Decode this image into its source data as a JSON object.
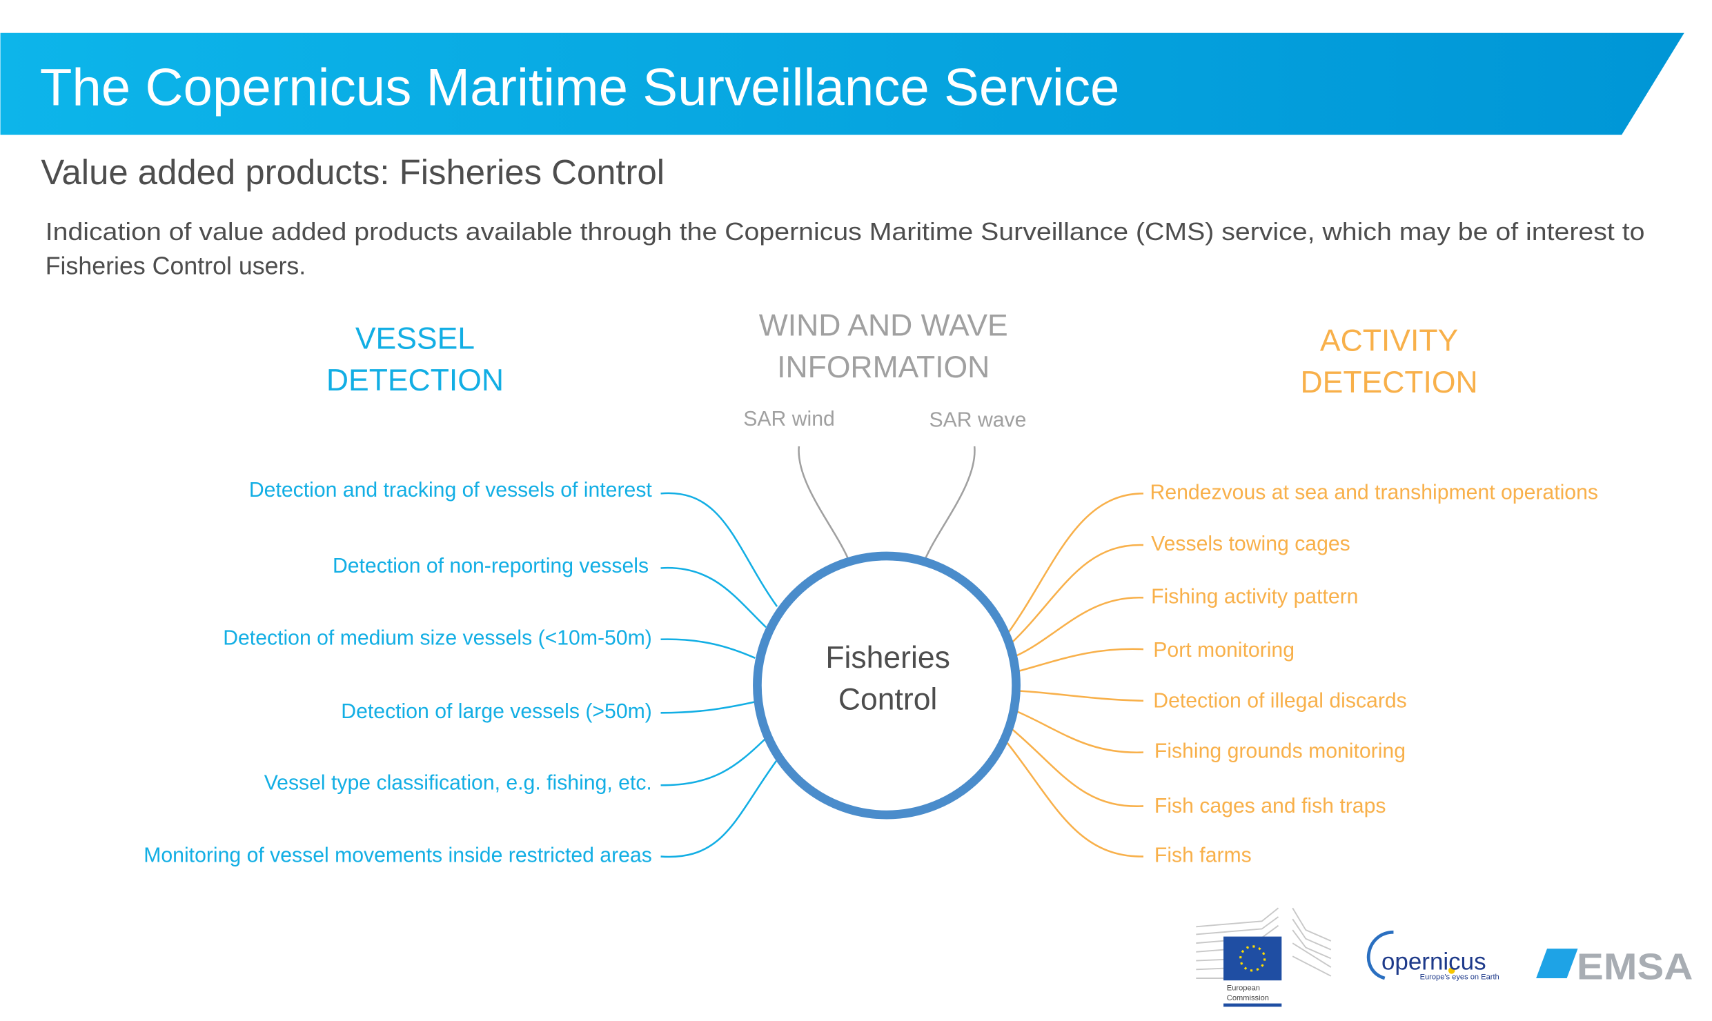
{
  "header": {
    "title": "The Copernicus Maritime Surveillance Service"
  },
  "subtitle": "Value added products: Fisheries Control",
  "description": {
    "line1": "Indication of value added products available through the Copernicus Maritime Surveillance (CMS) service, which may be of interest to",
    "line2": "Fisheries Control users."
  },
  "colors": {
    "banner_start": "#0db5ea",
    "banner_end": "#0096d6",
    "vessel": "#12aee4",
    "wind": "#a0a0a0",
    "activity": "#f8b04a",
    "circle": "#4a8ccb"
  },
  "center": {
    "line1": "Fisheries",
    "line2": "Control"
  },
  "vessel_detection": {
    "heading1": "VESSEL",
    "heading2": "DETECTION",
    "items": [
      "Detection and tracking of vessels of interest",
      "Detection of non-reporting vessels",
      "Detection of medium size vessels (<10m-50m)",
      "Detection of large vessels (>50m)",
      "Vessel type classification, e.g. fishing, etc.",
      "Monitoring of vessel movements inside restricted areas"
    ]
  },
  "wind_wave": {
    "heading1": "WIND AND WAVE",
    "heading2": "INFORMATION",
    "items": [
      "SAR wind",
      "SAR wave"
    ]
  },
  "activity_detection": {
    "heading1": "ACTIVITY",
    "heading2": "DETECTION",
    "items": [
      "Rendezvous at sea and transhipment operations",
      "Vessels towing cages",
      "Fishing activity pattern",
      "Port monitoring",
      "Detection of illegal discards",
      "Fishing grounds monitoring",
      "Fish cages and fish traps",
      "Fish farms"
    ]
  },
  "logos": {
    "ec": {
      "line1": "European",
      "line2": "Commission"
    },
    "copernicus": {
      "name": "opernicus",
      "tagline": "Europe's eyes on Earth"
    },
    "emsa": {
      "name": "EMSA"
    }
  }
}
